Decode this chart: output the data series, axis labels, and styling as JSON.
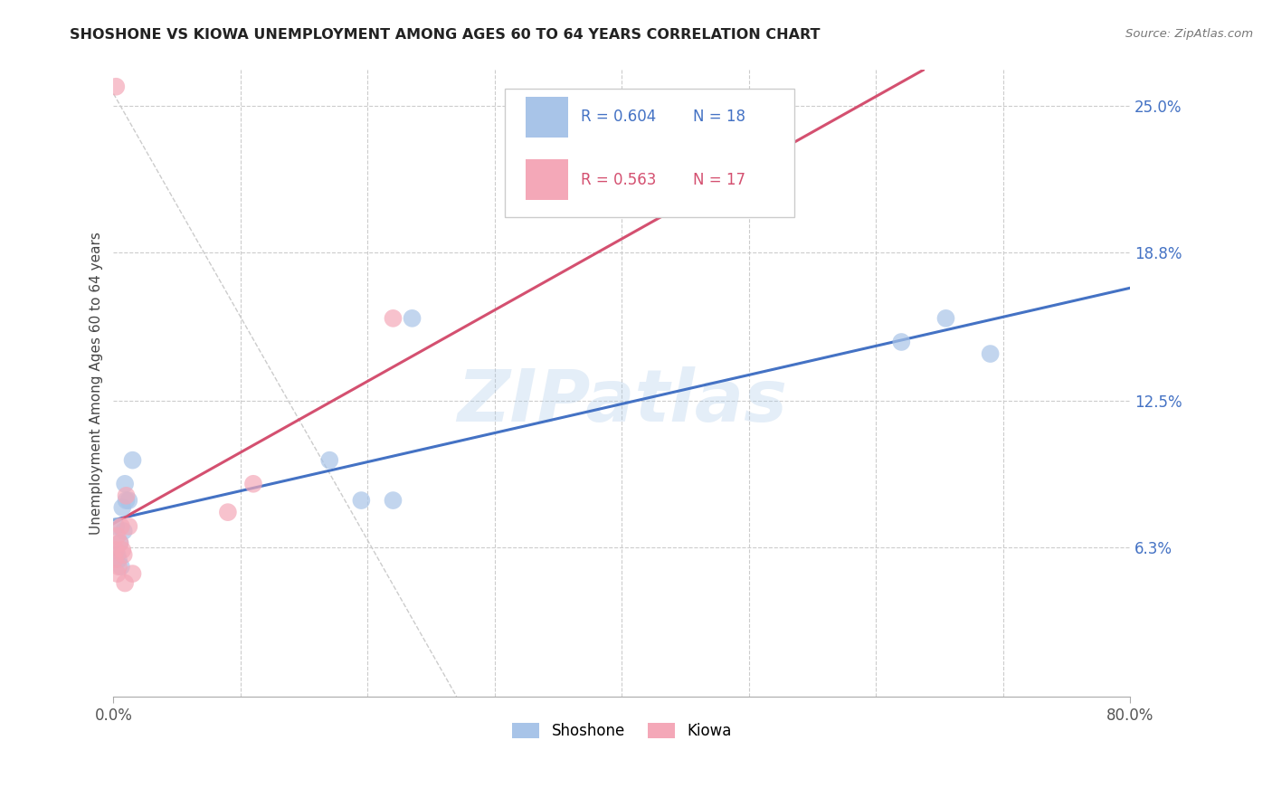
{
  "title": "SHOSHONE VS KIOWA UNEMPLOYMENT AMONG AGES 60 TO 64 YEARS CORRELATION CHART",
  "source": "Source: ZipAtlas.com",
  "ylabel": "Unemployment Among Ages 60 to 64 years",
  "xlim": [
    0.0,
    0.8
  ],
  "ylim": [
    0.0,
    0.265
  ],
  "ytick_positions": [
    0.063,
    0.125,
    0.188,
    0.25
  ],
  "ytick_labels": [
    "6.3%",
    "12.5%",
    "18.8%",
    "25.0%"
  ],
  "shoshone_color": "#a8c4e8",
  "kiowa_color": "#f4a8b8",
  "shoshone_line_color": "#4472c4",
  "kiowa_line_color": "#d45070",
  "legend_R_shoshone": "0.604",
  "legend_N_shoshone": "18",
  "legend_R_kiowa": "0.563",
  "legend_N_kiowa": "17",
  "shoshone_x": [
    0.002,
    0.003,
    0.004,
    0.005,
    0.006,
    0.007,
    0.008,
    0.009,
    0.01,
    0.012,
    0.015,
    0.17,
    0.195,
    0.22,
    0.235,
    0.62,
    0.655,
    0.69
  ],
  "shoshone_y": [
    0.072,
    0.06,
    0.058,
    0.065,
    0.055,
    0.08,
    0.07,
    0.09,
    0.083,
    0.083,
    0.1,
    0.1,
    0.083,
    0.083,
    0.16,
    0.15,
    0.16,
    0.145
  ],
  "kiowa_x": [
    0.001,
    0.002,
    0.003,
    0.004,
    0.005,
    0.006,
    0.007,
    0.008,
    0.009,
    0.01,
    0.012,
    0.015,
    0.09,
    0.22,
    0.002,
    0.003,
    0.11
  ],
  "kiowa_y": [
    0.058,
    0.062,
    0.068,
    0.055,
    0.065,
    0.072,
    0.062,
    0.06,
    0.048,
    0.085,
    0.072,
    0.052,
    0.078,
    0.16,
    0.258,
    0.052,
    0.09
  ],
  "watermark": "ZIPatlas",
  "background_color": "#ffffff",
  "grid_color": "#cccccc",
  "ref_line_color": "#cccccc"
}
